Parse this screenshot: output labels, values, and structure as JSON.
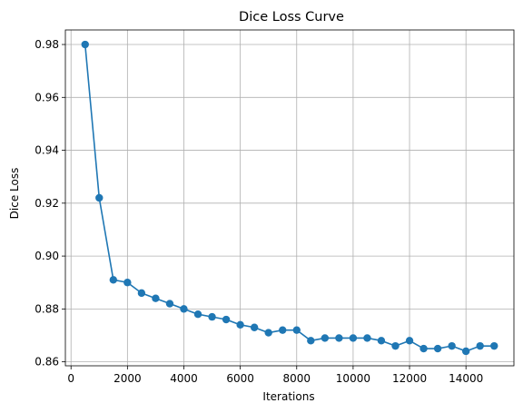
{
  "chart_data": {
    "type": "line",
    "title": "Dice Loss Curve",
    "xlabel": "Iterations",
    "ylabel": "Dice Loss",
    "xlim": [
      -200,
      15700
    ],
    "ylim": [
      0.8585,
      0.9855
    ],
    "xticks": [
      0,
      2000,
      4000,
      6000,
      8000,
      10000,
      12000,
      14000
    ],
    "yticks": [
      0.86,
      0.88,
      0.9,
      0.92,
      0.94,
      0.96,
      0.98
    ],
    "xtick_labels": [
      "0",
      "2000",
      "4000",
      "6000",
      "8000",
      "10000",
      "12000",
      "14000"
    ],
    "ytick_labels": [
      "0.86",
      "0.88",
      "0.90",
      "0.92",
      "0.94",
      "0.96",
      "0.98"
    ],
    "grid": true,
    "marker": "circle",
    "color": "#1f77b4",
    "series": [
      {
        "x": [
          500,
          1000,
          1500,
          2000,
          2500,
          3000,
          3500,
          4000,
          4500,
          5000,
          5500,
          6000,
          6500,
          7000,
          7500,
          8000,
          8500,
          9000,
          9500,
          10000,
          10500,
          11000,
          11500,
          12000,
          12500,
          13000,
          13500,
          14000,
          14500,
          15000
        ],
        "y": [
          0.98,
          0.922,
          0.891,
          0.89,
          0.886,
          0.884,
          0.882,
          0.88,
          0.878,
          0.877,
          0.876,
          0.874,
          0.873,
          0.871,
          0.872,
          0.872,
          0.868,
          0.869,
          0.869,
          0.869,
          0.869,
          0.868,
          0.866,
          0.868,
          0.865,
          0.865,
          0.866,
          0.864,
          0.866,
          0.866
        ]
      }
    ]
  }
}
